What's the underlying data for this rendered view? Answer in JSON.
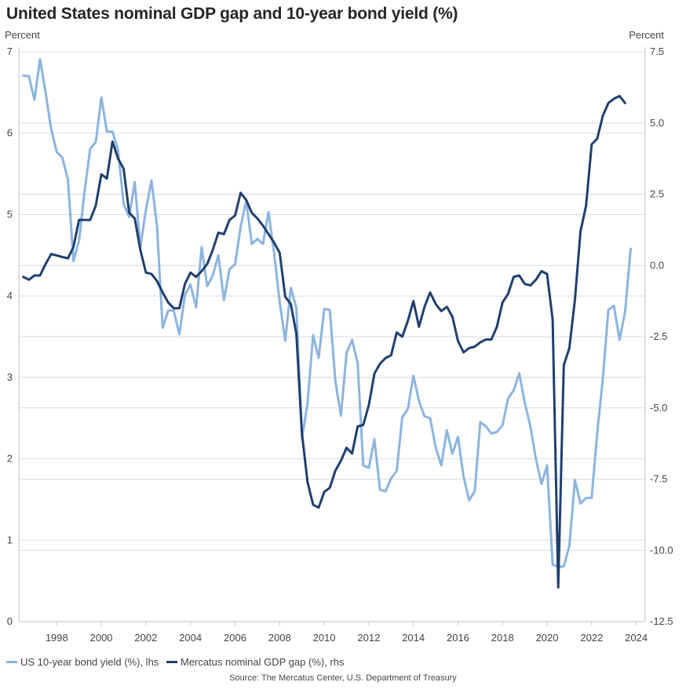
{
  "title": "United States nominal GDP gap and 10-year bond yield (%)",
  "left_axis_unit": "Percent",
  "right_axis_unit": "Percent",
  "source": "Source: The Mercatus Center, U.S. Department of Treasury",
  "colors": {
    "yield": "#8cb4df",
    "gap": "#1f3f6e",
    "grid": "#d9d9d9"
  },
  "chart_data": {
    "type": "line",
    "title": "United States nominal GDP gap and 10-year bond yield (%)",
    "xlim": [
      1996.3,
      2024.4
    ],
    "x_ticks": [
      "1998",
      "2000",
      "2002",
      "2004",
      "2006",
      "2008",
      "2010",
      "2012",
      "2014",
      "2016",
      "2018",
      "2020",
      "2022",
      "2024"
    ],
    "left_axis": {
      "label": "Percent",
      "ylim": [
        0,
        7
      ],
      "ticks": [
        "0",
        "1",
        "2",
        "3",
        "4",
        "5",
        "6",
        "7"
      ]
    },
    "right_axis": {
      "label": "Percent",
      "ylim": [
        -12.5,
        7.5
      ],
      "ticks": [
        "7.5",
        "5.0",
        "2.5",
        "0.0",
        "-2.5",
        "-5.0",
        "-7.5",
        "-10.0",
        "-12.5"
      ]
    },
    "grid": true,
    "legend_position": "bottom-left",
    "series": [
      {
        "name": "US 10-year bond yield (%), lhs",
        "axis": "left",
        "color": "#8cb4df",
        "points": [
          [
            1996.5,
            6.71
          ],
          [
            1996.75,
            6.7
          ],
          [
            1997.0,
            6.41
          ],
          [
            1997.25,
            6.91
          ],
          [
            1997.5,
            6.5
          ],
          [
            1997.75,
            6.05
          ],
          [
            1998.0,
            5.77
          ],
          [
            1998.25,
            5.7
          ],
          [
            1998.5,
            5.43
          ],
          [
            1998.75,
            4.43
          ],
          [
            1999.0,
            4.68
          ],
          [
            1999.25,
            5.29
          ],
          [
            1999.5,
            5.81
          ],
          [
            1999.75,
            5.89
          ],
          [
            2000.0,
            6.44
          ],
          [
            2000.25,
            6.02
          ],
          [
            2000.5,
            6.02
          ],
          [
            2000.75,
            5.79
          ],
          [
            2001.0,
            5.13
          ],
          [
            2001.25,
            4.97
          ],
          [
            2001.5,
            5.4
          ],
          [
            2001.75,
            4.6
          ],
          [
            2002.0,
            5.06
          ],
          [
            2002.25,
            5.42
          ],
          [
            2002.5,
            4.85
          ],
          [
            2002.75,
            3.61
          ],
          [
            2003.0,
            3.82
          ],
          [
            2003.25,
            3.82
          ],
          [
            2003.5,
            3.53
          ],
          [
            2003.75,
            4.01
          ],
          [
            2004.0,
            4.14
          ],
          [
            2004.25,
            3.86
          ],
          [
            2004.5,
            4.6
          ],
          [
            2004.75,
            4.12
          ],
          [
            2005.0,
            4.25
          ],
          [
            2005.25,
            4.5
          ],
          [
            2005.5,
            3.95
          ],
          [
            2005.75,
            4.33
          ],
          [
            2006.0,
            4.39
          ],
          [
            2006.25,
            4.85
          ],
          [
            2006.5,
            5.17
          ],
          [
            2006.75,
            4.64
          ],
          [
            2007.0,
            4.7
          ],
          [
            2007.25,
            4.64
          ],
          [
            2007.5,
            5.03
          ],
          [
            2007.75,
            4.53
          ],
          [
            2008.0,
            3.93
          ],
          [
            2008.25,
            3.45
          ],
          [
            2008.5,
            4.1
          ],
          [
            2008.75,
            3.85
          ],
          [
            2009.0,
            2.25
          ],
          [
            2009.25,
            2.68
          ],
          [
            2009.5,
            3.52
          ],
          [
            2009.75,
            3.24
          ],
          [
            2010.0,
            3.84
          ],
          [
            2010.25,
            3.83
          ],
          [
            2010.5,
            2.95
          ],
          [
            2010.75,
            2.53
          ],
          [
            2011.0,
            3.3
          ],
          [
            2011.25,
            3.46
          ],
          [
            2011.5,
            3.17
          ],
          [
            2011.75,
            1.92
          ],
          [
            2012.0,
            1.89
          ],
          [
            2012.25,
            2.24
          ],
          [
            2012.5,
            1.62
          ],
          [
            2012.75,
            1.6
          ],
          [
            2013.0,
            1.76
          ],
          [
            2013.25,
            1.85
          ],
          [
            2013.5,
            2.51
          ],
          [
            2013.75,
            2.61
          ],
          [
            2014.0,
            3.02
          ],
          [
            2014.25,
            2.71
          ],
          [
            2014.5,
            2.52
          ],
          [
            2014.75,
            2.5
          ],
          [
            2015.0,
            2.14
          ],
          [
            2015.25,
            1.92
          ],
          [
            2015.5,
            2.35
          ],
          [
            2015.75,
            2.06
          ],
          [
            2016.0,
            2.27
          ],
          [
            2016.25,
            1.78
          ],
          [
            2016.5,
            1.49
          ],
          [
            2016.75,
            1.6
          ],
          [
            2017.0,
            2.45
          ],
          [
            2017.25,
            2.4
          ],
          [
            2017.5,
            2.31
          ],
          [
            2017.75,
            2.33
          ],
          [
            2018.0,
            2.41
          ],
          [
            2018.25,
            2.74
          ],
          [
            2018.5,
            2.84
          ],
          [
            2018.75,
            3.05
          ],
          [
            2019.0,
            2.69
          ],
          [
            2019.25,
            2.4
          ],
          [
            2019.5,
            2.0
          ],
          [
            2019.75,
            1.69
          ],
          [
            2020.0,
            1.92
          ],
          [
            2020.25,
            0.7
          ],
          [
            2020.5,
            0.67
          ],
          [
            2020.75,
            0.68
          ],
          [
            2021.0,
            0.93
          ],
          [
            2021.25,
            1.74
          ],
          [
            2021.5,
            1.45
          ],
          [
            2021.75,
            1.52
          ],
          [
            2022.0,
            1.52
          ],
          [
            2022.25,
            2.32
          ],
          [
            2022.5,
            2.98
          ],
          [
            2022.75,
            3.83
          ],
          [
            2023.0,
            3.88
          ],
          [
            2023.25,
            3.46
          ],
          [
            2023.5,
            3.81
          ],
          [
            2023.75,
            4.58
          ]
        ]
      },
      {
        "name": "Mercatus nominal GDP gap (%), rhs",
        "axis": "right",
        "color": "#1f3f6e",
        "points": [
          [
            1996.5,
            -0.4
          ],
          [
            1996.75,
            -0.5
          ],
          [
            1997.0,
            -0.35
          ],
          [
            1997.25,
            -0.35
          ],
          [
            1997.5,
            0.05
          ],
          [
            1997.75,
            0.4
          ],
          [
            1998.0,
            0.35
          ],
          [
            1998.25,
            0.3
          ],
          [
            1998.5,
            0.25
          ],
          [
            1998.75,
            0.65
          ],
          [
            1999.0,
            1.6
          ],
          [
            1999.25,
            1.6
          ],
          [
            1999.5,
            1.6
          ],
          [
            1999.75,
            2.1
          ],
          [
            2000.0,
            3.2
          ],
          [
            2000.25,
            3.05
          ],
          [
            2000.5,
            4.35
          ],
          [
            2000.75,
            3.75
          ],
          [
            2001.0,
            3.4
          ],
          [
            2001.25,
            1.85
          ],
          [
            2001.5,
            1.65
          ],
          [
            2001.75,
            0.55
          ],
          [
            2002.0,
            -0.25
          ],
          [
            2002.25,
            -0.3
          ],
          [
            2002.5,
            -0.55
          ],
          [
            2002.75,
            -0.95
          ],
          [
            2003.0,
            -1.3
          ],
          [
            2003.25,
            -1.5
          ],
          [
            2003.5,
            -1.5
          ],
          [
            2003.75,
            -0.65
          ],
          [
            2004.0,
            -0.25
          ],
          [
            2004.25,
            -0.4
          ],
          [
            2004.5,
            -0.2
          ],
          [
            2004.75,
            0.05
          ],
          [
            2005.0,
            0.55
          ],
          [
            2005.25,
            1.15
          ],
          [
            2005.5,
            1.1
          ],
          [
            2005.75,
            1.6
          ],
          [
            2006.0,
            1.75
          ],
          [
            2006.25,
            2.55
          ],
          [
            2006.5,
            2.3
          ],
          [
            2006.75,
            1.85
          ],
          [
            2007.0,
            1.65
          ],
          [
            2007.25,
            1.4
          ],
          [
            2007.5,
            1.1
          ],
          [
            2007.75,
            0.8
          ],
          [
            2008.0,
            0.45
          ],
          [
            2008.25,
            -1.1
          ],
          [
            2008.5,
            -1.35
          ],
          [
            2008.75,
            -2.4
          ],
          [
            2009.0,
            -5.9
          ],
          [
            2009.25,
            -7.6
          ],
          [
            2009.5,
            -8.4
          ],
          [
            2009.75,
            -8.5
          ],
          [
            2010.0,
            -7.95
          ],
          [
            2010.25,
            -7.8
          ],
          [
            2010.5,
            -7.2
          ],
          [
            2010.75,
            -6.85
          ],
          [
            2011.0,
            -6.4
          ],
          [
            2011.25,
            -6.6
          ],
          [
            2011.5,
            -5.65
          ],
          [
            2011.75,
            -5.6
          ],
          [
            2012.0,
            -4.9
          ],
          [
            2012.25,
            -3.8
          ],
          [
            2012.5,
            -3.45
          ],
          [
            2012.75,
            -3.25
          ],
          [
            2013.0,
            -3.15
          ],
          [
            2013.25,
            -2.35
          ],
          [
            2013.5,
            -2.5
          ],
          [
            2013.75,
            -1.95
          ],
          [
            2014.0,
            -1.25
          ],
          [
            2014.25,
            -2.15
          ],
          [
            2014.5,
            -1.45
          ],
          [
            2014.75,
            -0.95
          ],
          [
            2015.0,
            -1.35
          ],
          [
            2015.25,
            -1.6
          ],
          [
            2015.5,
            -1.45
          ],
          [
            2015.75,
            -1.8
          ],
          [
            2016.0,
            -2.65
          ],
          [
            2016.25,
            -3.05
          ],
          [
            2016.5,
            -2.9
          ],
          [
            2016.75,
            -2.85
          ],
          [
            2017.0,
            -2.7
          ],
          [
            2017.25,
            -2.6
          ],
          [
            2017.5,
            -2.6
          ],
          [
            2017.75,
            -2.15
          ],
          [
            2018.0,
            -1.3
          ],
          [
            2018.25,
            -1.0
          ],
          [
            2018.5,
            -0.4
          ],
          [
            2018.75,
            -0.35
          ],
          [
            2019.0,
            -0.65
          ],
          [
            2019.25,
            -0.7
          ],
          [
            2019.5,
            -0.5
          ],
          [
            2019.75,
            -0.2
          ],
          [
            2020.0,
            -0.3
          ],
          [
            2020.25,
            -1.9
          ],
          [
            2020.5,
            -11.3
          ],
          [
            2020.75,
            -3.5
          ],
          [
            2021.0,
            -2.9
          ],
          [
            2021.25,
            -1.2
          ],
          [
            2021.5,
            1.2
          ],
          [
            2021.75,
            2.1
          ],
          [
            2022.0,
            4.25
          ],
          [
            2022.25,
            4.45
          ],
          [
            2022.5,
            5.25
          ],
          [
            2022.75,
            5.7
          ],
          [
            2023.0,
            5.85
          ],
          [
            2023.25,
            5.95
          ],
          [
            2023.5,
            5.7
          ]
        ]
      }
    ]
  }
}
